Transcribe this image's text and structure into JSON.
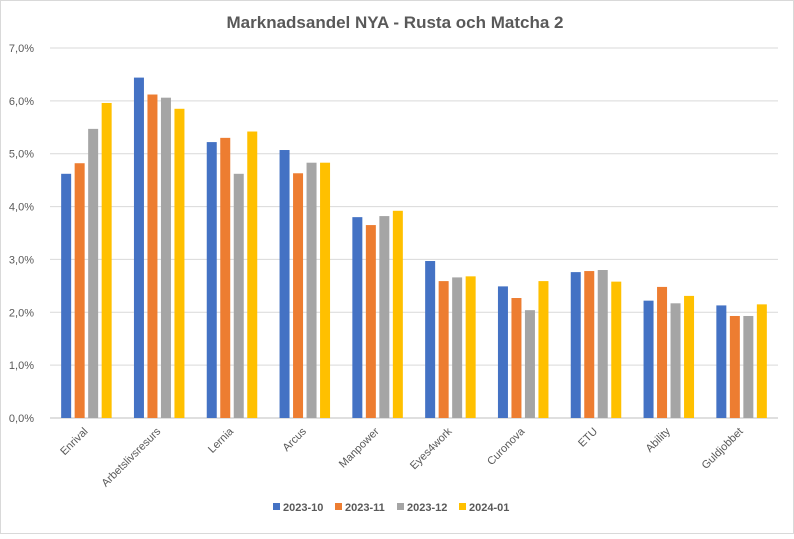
{
  "chart_data": {
    "type": "bar",
    "title": "Marknadsandel NYA - Rusta och Matcha 2",
    "xlabel": "",
    "ylabel": "",
    "ylim": [
      0,
      7
    ],
    "yticks": [
      "0,0%",
      "1,0%",
      "2,0%",
      "3,0%",
      "4,0%",
      "5,0%",
      "6,0%",
      "7,0%"
    ],
    "grid": true,
    "legend_position": "bottom",
    "categories": [
      "Enrival",
      "Arbetslivsresurs",
      "Lernia",
      "Arcus",
      "Manpower",
      "Eyes4work",
      "Curonova",
      "ETU",
      "Ability",
      "Guldjobbet"
    ],
    "series": [
      {
        "name": "2023-10",
        "color": "#4472C4",
        "values": [
          4.62,
          6.44,
          5.22,
          5.07,
          3.8,
          2.97,
          2.49,
          2.76,
          2.22,
          2.13
        ]
      },
      {
        "name": "2023-11",
        "color": "#ED7D31",
        "values": [
          4.82,
          6.12,
          5.3,
          4.63,
          3.65,
          2.59,
          2.27,
          2.78,
          2.48,
          1.93
        ]
      },
      {
        "name": "2023-12",
        "color": "#A5A5A5",
        "values": [
          5.47,
          6.06,
          4.62,
          4.83,
          3.82,
          2.66,
          2.04,
          2.8,
          2.17,
          1.93
        ]
      },
      {
        "name": "2024-01",
        "color": "#FFC000",
        "values": [
          5.96,
          5.85,
          5.42,
          4.83,
          3.92,
          2.68,
          2.59,
          2.58,
          2.31,
          2.15
        ]
      }
    ]
  }
}
